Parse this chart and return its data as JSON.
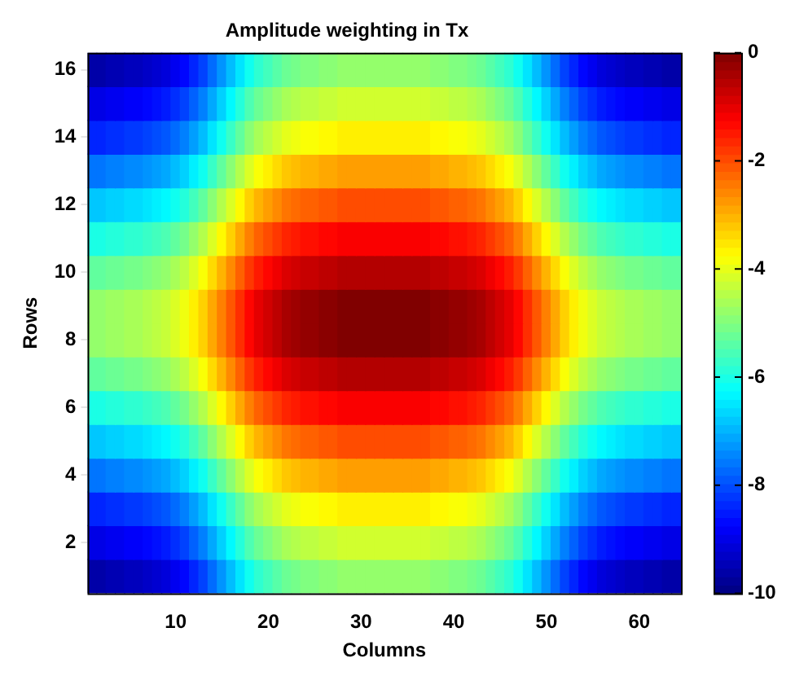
{
  "chart_data": {
    "type": "heatmap",
    "title": "Amplitude weighting in Tx",
    "xlabel": "Columns",
    "ylabel": "Rows",
    "categories": [
      null,
      null,
      null,
      null,
      null,
      null,
      null,
      null,
      null,
      "10",
      null,
      null,
      null,
      null,
      null,
      null,
      null,
      null,
      null,
      "20",
      null,
      null,
      null,
      null,
      null,
      null,
      null,
      null,
      null,
      "30",
      null,
      null,
      null,
      null,
      null,
      null,
      null,
      null,
      null,
      "40",
      null,
      null,
      null,
      null,
      null,
      null,
      null,
      null,
      null,
      "50",
      null,
      null,
      null,
      null,
      null,
      null,
      null,
      null,
      null,
      "60",
      null,
      null,
      null,
      null
    ],
    "y_categories": [
      "16",
      null,
      "14",
      null,
      "12",
      null,
      "10",
      null,
      "8",
      null,
      "6",
      null,
      "4",
      null,
      "2",
      null
    ],
    "clim": [
      -10,
      0
    ],
    "cticks": [
      -10,
      -8,
      -6,
      -4,
      -2,
      0
    ],
    "cells": [
      [
        -9.6,
        -9.6,
        -9.5,
        -9.5,
        -9.4,
        -9.4,
        -9.3,
        -9.2,
        -9.1,
        -8.9,
        -8.7,
        -8.4,
        -8.1,
        -7.7,
        -7.3,
        -6.9,
        -6.5,
        -6.1,
        -5.8,
        -5.6,
        -5.4,
        -5.2,
        -5.1,
        -5,
        -5,
        -4.9,
        -4.9,
        -4.8,
        -4.8,
        -4.8,
        -4.8,
        -4.8,
        -4.8,
        -4.8,
        -4.8,
        -4.8,
        -4.8,
        -4.9,
        -4.9,
        -5,
        -5,
        -5.1,
        -5.2,
        -5.4,
        -5.6,
        -5.8,
        -6.1,
        -6.5,
        -6.9,
        -7.3,
        -7.7,
        -8.1,
        -8.4,
        -8.7,
        -8.9,
        -9.1,
        -9.2,
        -9.3,
        -9.4,
        -9.4,
        -9.5,
        -9.5,
        -9.6,
        -9.6
      ],
      [
        -9,
        -9,
        -8.9,
        -8.9,
        -8.8,
        -8.8,
        -8.7,
        -8.6,
        -8.5,
        -8.3,
        -8.1,
        -7.8,
        -7.5,
        -7.1,
        -6.7,
        -6.3,
        -5.9,
        -5.5,
        -5.2,
        -5,
        -4.8,
        -4.6,
        -4.5,
        -4.4,
        -4.4,
        -4.3,
        -4.3,
        -4.2,
        -4.2,
        -4.2,
        -4.2,
        -4.2,
        -4.2,
        -4.2,
        -4.2,
        -4.2,
        -4.2,
        -4.3,
        -4.3,
        -4.4,
        -4.4,
        -4.5,
        -4.6,
        -4.8,
        -5,
        -5.2,
        -5.5,
        -5.9,
        -6.3,
        -6.7,
        -7.1,
        -7.5,
        -7.8,
        -8.1,
        -8.3,
        -8.5,
        -8.6,
        -8.7,
        -8.8,
        -8.8,
        -8.9,
        -8.9,
        -9,
        -9
      ],
      [
        -8.4,
        -8.4,
        -8.3,
        -8.3,
        -8.2,
        -8.2,
        -8.1,
        -8,
        -7.9,
        -7.7,
        -7.5,
        -7.2,
        -6.9,
        -6.5,
        -6.1,
        -5.7,
        -5.3,
        -4.9,
        -4.6,
        -4.4,
        -4.2,
        -4,
        -3.9,
        -3.8,
        -3.8,
        -3.7,
        -3.7,
        -3.6,
        -3.6,
        -3.6,
        -3.6,
        -3.6,
        -3.6,
        -3.6,
        -3.6,
        -3.6,
        -3.6,
        -3.7,
        -3.7,
        -3.8,
        -3.8,
        -3.9,
        -4,
        -4.2,
        -4.4,
        -4.6,
        -4.9,
        -5.3,
        -5.7,
        -6.1,
        -6.5,
        -6.9,
        -7.2,
        -7.5,
        -7.7,
        -7.9,
        -8,
        -8.1,
        -8.2,
        -8.2,
        -8.3,
        -8.3,
        -8.4,
        -8.4
      ],
      [
        -7.6,
        -7.6,
        -7.5,
        -7.5,
        -7.4,
        -7.4,
        -7.3,
        -7.2,
        -7.1,
        -6.9,
        -6.7,
        -6.4,
        -6.1,
        -5.7,
        -5.3,
        -4.9,
        -4.5,
        -4.1,
        -3.8,
        -3.6,
        -3.4,
        -3.2,
        -3.1,
        -3,
        -3,
        -2.9,
        -2.9,
        -2.8,
        -2.8,
        -2.8,
        -2.8,
        -2.8,
        -2.8,
        -2.8,
        -2.8,
        -2.8,
        -2.8,
        -2.9,
        -2.9,
        -3,
        -3,
        -3.1,
        -3.2,
        -3.4,
        -3.6,
        -3.8,
        -4.1,
        -4.5,
        -4.9,
        -5.3,
        -5.7,
        -6.1,
        -6.4,
        -6.7,
        -6.9,
        -7.1,
        -7.2,
        -7.3,
        -7.4,
        -7.4,
        -7.5,
        -7.5,
        -7.6,
        -7.6
      ],
      [
        -6.8,
        -6.8,
        -6.7,
        -6.7,
        -6.6,
        -6.6,
        -6.5,
        -6.4,
        -6.3,
        -6.1,
        -5.9,
        -5.6,
        -5.3,
        -4.9,
        -4.5,
        -4.1,
        -3.7,
        -3.3,
        -3,
        -2.8,
        -2.6,
        -2.4,
        -2.3,
        -2.2,
        -2.2,
        -2.1,
        -2.1,
        -2,
        -2,
        -2,
        -2,
        -2,
        -2,
        -2,
        -2,
        -2,
        -2,
        -2.1,
        -2.1,
        -2.2,
        -2.2,
        -2.3,
        -2.4,
        -2.6,
        -2.8,
        -3,
        -3.3,
        -3.7,
        -4.1,
        -4.5,
        -4.9,
        -5.3,
        -5.6,
        -5.9,
        -6.1,
        -6.3,
        -6.4,
        -6.5,
        -6.6,
        -6.6,
        -6.7,
        -6.7,
        -6.8,
        -6.8
      ],
      [
        -6,
        -6,
        -5.9,
        -5.9,
        -5.8,
        -5.8,
        -5.7,
        -5.6,
        -5.5,
        -5.3,
        -5.1,
        -4.8,
        -4.5,
        -4.1,
        -3.7,
        -3.3,
        -2.9,
        -2.5,
        -2.2,
        -2,
        -1.8,
        -1.6,
        -1.5,
        -1.4,
        -1.4,
        -1.3,
        -1.3,
        -1.2,
        -1.2,
        -1.2,
        -1.2,
        -1.2,
        -1.2,
        -1.2,
        -1.2,
        -1.2,
        -1.2,
        -1.3,
        -1.3,
        -1.4,
        -1.4,
        -1.5,
        -1.6,
        -1.8,
        -2,
        -2.2,
        -2.5,
        -2.9,
        -3.3,
        -3.7,
        -4.1,
        -4.5,
        -4.8,
        -5.1,
        -5.3,
        -5.5,
        -5.6,
        -5.7,
        -5.8,
        -5.8,
        -5.9,
        -5.9,
        -6,
        -6
      ],
      [
        -5.3,
        -5.3,
        -5.2,
        -5.2,
        -5.1,
        -5.1,
        -5,
        -4.9,
        -4.8,
        -4.6,
        -4.4,
        -4.1,
        -3.8,
        -3.4,
        -3,
        -2.6,
        -2.2,
        -1.8,
        -1.5,
        -1.3,
        -1.1,
        -0.9,
        -0.8,
        -0.7,
        -0.7,
        -0.6,
        -0.6,
        -0.5,
        -0.5,
        -0.5,
        -0.5,
        -0.5,
        -0.5,
        -0.5,
        -0.5,
        -0.5,
        -0.5,
        -0.6,
        -0.6,
        -0.7,
        -0.7,
        -0.8,
        -0.9,
        -1.1,
        -1.3,
        -1.5,
        -1.8,
        -2.2,
        -2.6,
        -3,
        -3.4,
        -3.8,
        -4.1,
        -4.4,
        -4.6,
        -4.8,
        -4.9,
        -5,
        -5.1,
        -5.1,
        -5.2,
        -5.2,
        -5.3,
        -5.3
      ],
      [
        -4.8,
        -4.8,
        -4.7,
        -4.7,
        -4.6,
        -4.6,
        -4.5,
        -4.4,
        -4.3,
        -4.1,
        -3.9,
        -3.6,
        -3.3,
        -2.9,
        -2.5,
        -2.1,
        -1.7,
        -1.3,
        -1,
        -0.8,
        -0.6,
        -0.4,
        -0.3,
        -0.2,
        -0.2,
        -0.1,
        -0.1,
        0,
        0,
        0,
        0,
        0,
        0,
        0,
        0,
        0,
        0,
        -0.1,
        -0.1,
        -0.2,
        -0.2,
        -0.3,
        -0.4,
        -0.6,
        -0.8,
        -1,
        -1.3,
        -1.7,
        -2.1,
        -2.5,
        -2.9,
        -3.3,
        -3.6,
        -3.9,
        -4.1,
        -4.3,
        -4.4,
        -4.5,
        -4.6,
        -4.6,
        -4.7,
        -4.7,
        -4.8,
        -4.8
      ],
      [
        -4.8,
        -4.8,
        -4.7,
        -4.7,
        -4.6,
        -4.6,
        -4.5,
        -4.4,
        -4.3,
        -4.1,
        -3.9,
        -3.6,
        -3.3,
        -2.9,
        -2.5,
        -2.1,
        -1.7,
        -1.3,
        -1,
        -0.8,
        -0.6,
        -0.4,
        -0.3,
        -0.2,
        -0.2,
        -0.1,
        -0.1,
        0,
        0,
        0,
        0,
        0,
        0,
        0,
        0,
        0,
        0,
        -0.1,
        -0.1,
        -0.2,
        -0.2,
        -0.3,
        -0.4,
        -0.6,
        -0.8,
        -1,
        -1.3,
        -1.7,
        -2.1,
        -2.5,
        -2.9,
        -3.3,
        -3.6,
        -3.9,
        -4.1,
        -4.3,
        -4.4,
        -4.5,
        -4.6,
        -4.6,
        -4.7,
        -4.7,
        -4.8,
        -4.8
      ],
      [
        -5.3,
        -5.3,
        -5.2,
        -5.2,
        -5.1,
        -5.1,
        -5,
        -4.9,
        -4.8,
        -4.6,
        -4.4,
        -4.1,
        -3.8,
        -3.4,
        -3,
        -2.6,
        -2.2,
        -1.8,
        -1.5,
        -1.3,
        -1.1,
        -0.9,
        -0.8,
        -0.7,
        -0.7,
        -0.6,
        -0.6,
        -0.5,
        -0.5,
        -0.5,
        -0.5,
        -0.5,
        -0.5,
        -0.5,
        -0.5,
        -0.5,
        -0.5,
        -0.6,
        -0.6,
        -0.7,
        -0.7,
        -0.8,
        -0.9,
        -1.1,
        -1.3,
        -1.5,
        -1.8,
        -2.2,
        -2.6,
        -3,
        -3.4,
        -3.8,
        -4.1,
        -4.4,
        -4.6,
        -4.8,
        -4.9,
        -5,
        -5.1,
        -5.1,
        -5.2,
        -5.2,
        -5.3,
        -5.3
      ],
      [
        -6,
        -6,
        -5.9,
        -5.9,
        -5.8,
        -5.8,
        -5.7,
        -5.6,
        -5.5,
        -5.3,
        -5.1,
        -4.8,
        -4.5,
        -4.1,
        -3.7,
        -3.3,
        -2.9,
        -2.5,
        -2.2,
        -2,
        -1.8,
        -1.6,
        -1.5,
        -1.4,
        -1.4,
        -1.3,
        -1.3,
        -1.2,
        -1.2,
        -1.2,
        -1.2,
        -1.2,
        -1.2,
        -1.2,
        -1.2,
        -1.2,
        -1.2,
        -1.3,
        -1.3,
        -1.4,
        -1.4,
        -1.5,
        -1.6,
        -1.8,
        -2,
        -2.2,
        -2.5,
        -2.9,
        -3.3,
        -3.7,
        -4.1,
        -4.5,
        -4.8,
        -5.1,
        -5.3,
        -5.5,
        -5.6,
        -5.7,
        -5.8,
        -5.8,
        -5.9,
        -5.9,
        -6,
        -6
      ],
      [
        -6.8,
        -6.8,
        -6.7,
        -6.7,
        -6.6,
        -6.6,
        -6.5,
        -6.4,
        -6.3,
        -6.1,
        -5.9,
        -5.6,
        -5.3,
        -4.9,
        -4.5,
        -4.1,
        -3.7,
        -3.3,
        -3,
        -2.8,
        -2.6,
        -2.4,
        -2.3,
        -2.2,
        -2.2,
        -2.1,
        -2.1,
        -2,
        -2,
        -2,
        -2,
        -2,
        -2,
        -2,
        -2,
        -2,
        -2,
        -2.1,
        -2.1,
        -2.2,
        -2.2,
        -2.3,
        -2.4,
        -2.6,
        -2.8,
        -3,
        -3.3,
        -3.7,
        -4.1,
        -4.5,
        -4.9,
        -5.3,
        -5.6,
        -5.9,
        -6.1,
        -6.3,
        -6.4,
        -6.5,
        -6.6,
        -6.6,
        -6.7,
        -6.7,
        -6.8,
        -6.8
      ],
      [
        -7.6,
        -7.6,
        -7.5,
        -7.5,
        -7.4,
        -7.4,
        -7.3,
        -7.2,
        -7.1,
        -6.9,
        -6.7,
        -6.4,
        -6.1,
        -5.7,
        -5.3,
        -4.9,
        -4.5,
        -4.1,
        -3.8,
        -3.6,
        -3.4,
        -3.2,
        -3.1,
        -3,
        -3,
        -2.9,
        -2.9,
        -2.8,
        -2.8,
        -2.8,
        -2.8,
        -2.8,
        -2.8,
        -2.8,
        -2.8,
        -2.8,
        -2.8,
        -2.9,
        -2.9,
        -3,
        -3,
        -3.1,
        -3.2,
        -3.4,
        -3.6,
        -3.8,
        -4.1,
        -4.5,
        -4.9,
        -5.3,
        -5.7,
        -6.1,
        -6.4,
        -6.7,
        -6.9,
        -7.1,
        -7.2,
        -7.3,
        -7.4,
        -7.4,
        -7.5,
        -7.5,
        -7.6,
        -7.6
      ],
      [
        -8.4,
        -8.4,
        -8.3,
        -8.3,
        -8.2,
        -8.2,
        -8.1,
        -8,
        -7.9,
        -7.7,
        -7.5,
        -7.2,
        -6.9,
        -6.5,
        -6.1,
        -5.7,
        -5.3,
        -4.9,
        -4.6,
        -4.4,
        -4.2,
        -4,
        -3.9,
        -3.8,
        -3.8,
        -3.7,
        -3.7,
        -3.6,
        -3.6,
        -3.6,
        -3.6,
        -3.6,
        -3.6,
        -3.6,
        -3.6,
        -3.6,
        -3.6,
        -3.7,
        -3.7,
        -3.8,
        -3.8,
        -3.9,
        -4,
        -4.2,
        -4.4,
        -4.6,
        -4.9,
        -5.3,
        -5.7,
        -6.1,
        -6.5,
        -6.9,
        -7.2,
        -7.5,
        -7.7,
        -7.9,
        -8,
        -8.1,
        -8.2,
        -8.2,
        -8.3,
        -8.3,
        -8.4,
        -8.4
      ],
      [
        -9,
        -9,
        -8.9,
        -8.9,
        -8.8,
        -8.8,
        -8.7,
        -8.6,
        -8.5,
        -8.3,
        -8.1,
        -7.8,
        -7.5,
        -7.1,
        -6.7,
        -6.3,
        -5.9,
        -5.5,
        -5.2,
        -5,
        -4.8,
        -4.6,
        -4.5,
        -4.4,
        -4.4,
        -4.3,
        -4.3,
        -4.2,
        -4.2,
        -4.2,
        -4.2,
        -4.2,
        -4.2,
        -4.2,
        -4.2,
        -4.2,
        -4.2,
        -4.3,
        -4.3,
        -4.4,
        -4.4,
        -4.5,
        -4.6,
        -4.8,
        -5,
        -5.2,
        -5.5,
        -5.9,
        -6.3,
        -6.7,
        -7.1,
        -7.5,
        -7.8,
        -8.1,
        -8.3,
        -8.5,
        -8.6,
        -8.7,
        -8.8,
        -8.8,
        -8.9,
        -8.9,
        -9,
        -9
      ],
      [
        -9.6,
        -9.6,
        -9.5,
        -9.5,
        -9.4,
        -9.4,
        -9.3,
        -9.2,
        -9.1,
        -8.9,
        -8.7,
        -8.4,
        -8.1,
        -7.7,
        -7.3,
        -6.9,
        -6.5,
        -6.1,
        -5.8,
        -5.6,
        -5.4,
        -5.2,
        -5.1,
        -5,
        -5,
        -4.9,
        -4.9,
        -4.8,
        -4.8,
        -4.8,
        -4.8,
        -4.8,
        -4.8,
        -4.8,
        -4.8,
        -4.8,
        -4.8,
        -4.9,
        -4.9,
        -5,
        -5,
        -5.1,
        -5.2,
        -5.4,
        -5.6,
        -5.8,
        -6.1,
        -6.5,
        -6.9,
        -7.3,
        -7.7,
        -8.1,
        -8.4,
        -8.7,
        -8.9,
        -9.1,
        -9.2,
        -9.3,
        -9.4,
        -9.4,
        -9.5,
        -9.5,
        -9.6,
        -9.6
      ]
    ]
  }
}
